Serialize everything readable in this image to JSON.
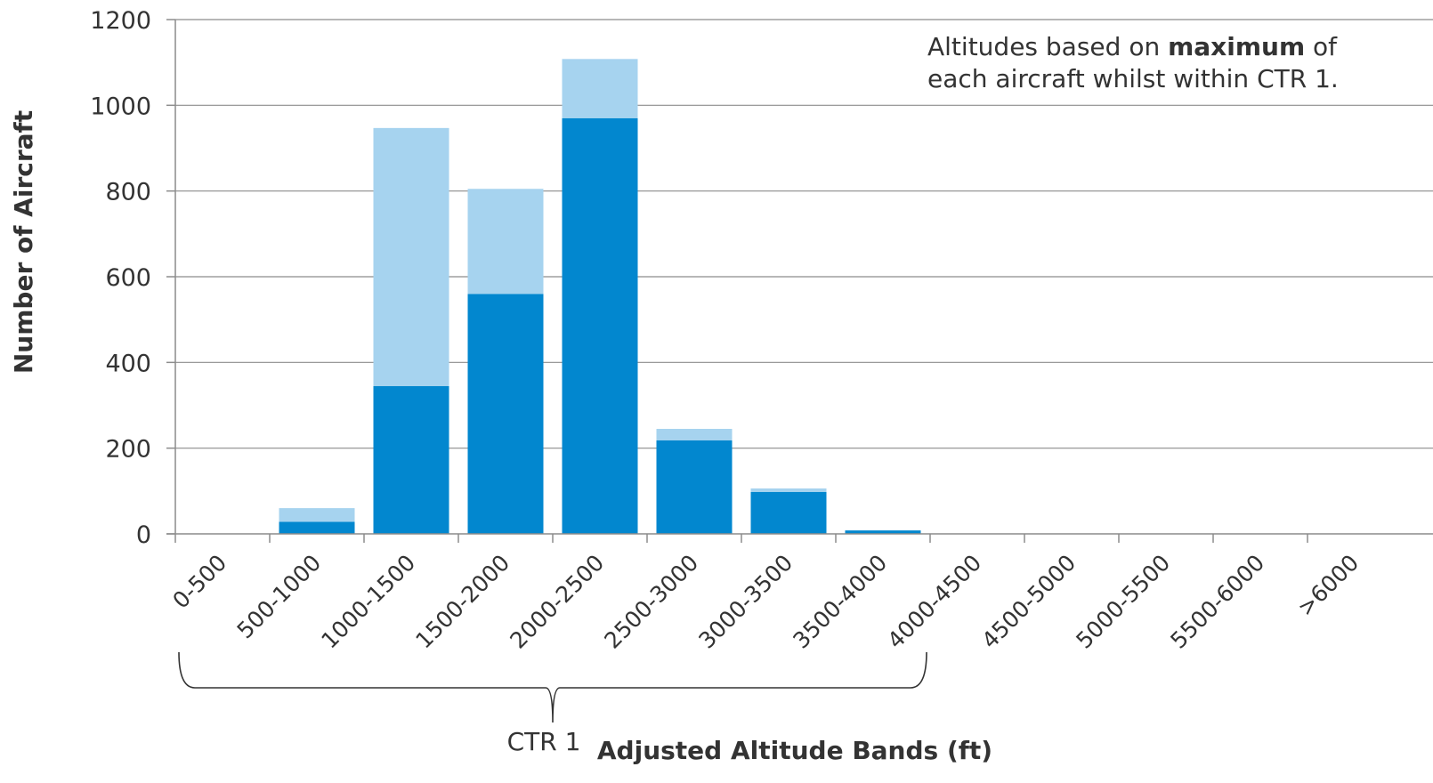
{
  "chart_data": {
    "type": "bar",
    "stacked": true,
    "categories": [
      "0-500",
      "500-1000",
      "1000-1500",
      "1500-2000",
      "2000-2500",
      "2500-3000",
      "3000-3500",
      "3500-4000",
      "4000-4500",
      "4500-5000",
      "5000-5500",
      "5500-6000",
      ">6000"
    ],
    "series": [
      {
        "values": [
          0,
          28,
          345,
          560,
          970,
          218,
          98,
          8,
          0,
          0,
          0,
          0,
          0
        ],
        "color": "#0287cf"
      },
      {
        "values": [
          0,
          32,
          602,
          245,
          138,
          27,
          8,
          0,
          0,
          0,
          0,
          0,
          0
        ],
        "color": "#a6d3ef"
      }
    ],
    "xlabel": "Adjusted Altitude Bands (ft)",
    "ylabel": "Number of Aircraft",
    "ylim": [
      0,
      1200
    ],
    "yticks": [
      "0",
      "200",
      "400",
      "600",
      "800",
      "1000",
      "1200"
    ],
    "grid": true,
    "annotation": {
      "line1_before": "Altitudes based on ",
      "line1_bold": "maximum",
      "line1_after": " of",
      "line2": "each aircraft whilst within CTR 1."
    },
    "bracket": {
      "label": "CTR 1",
      "from_category": "0-500",
      "to_category": "3500-4000"
    }
  }
}
